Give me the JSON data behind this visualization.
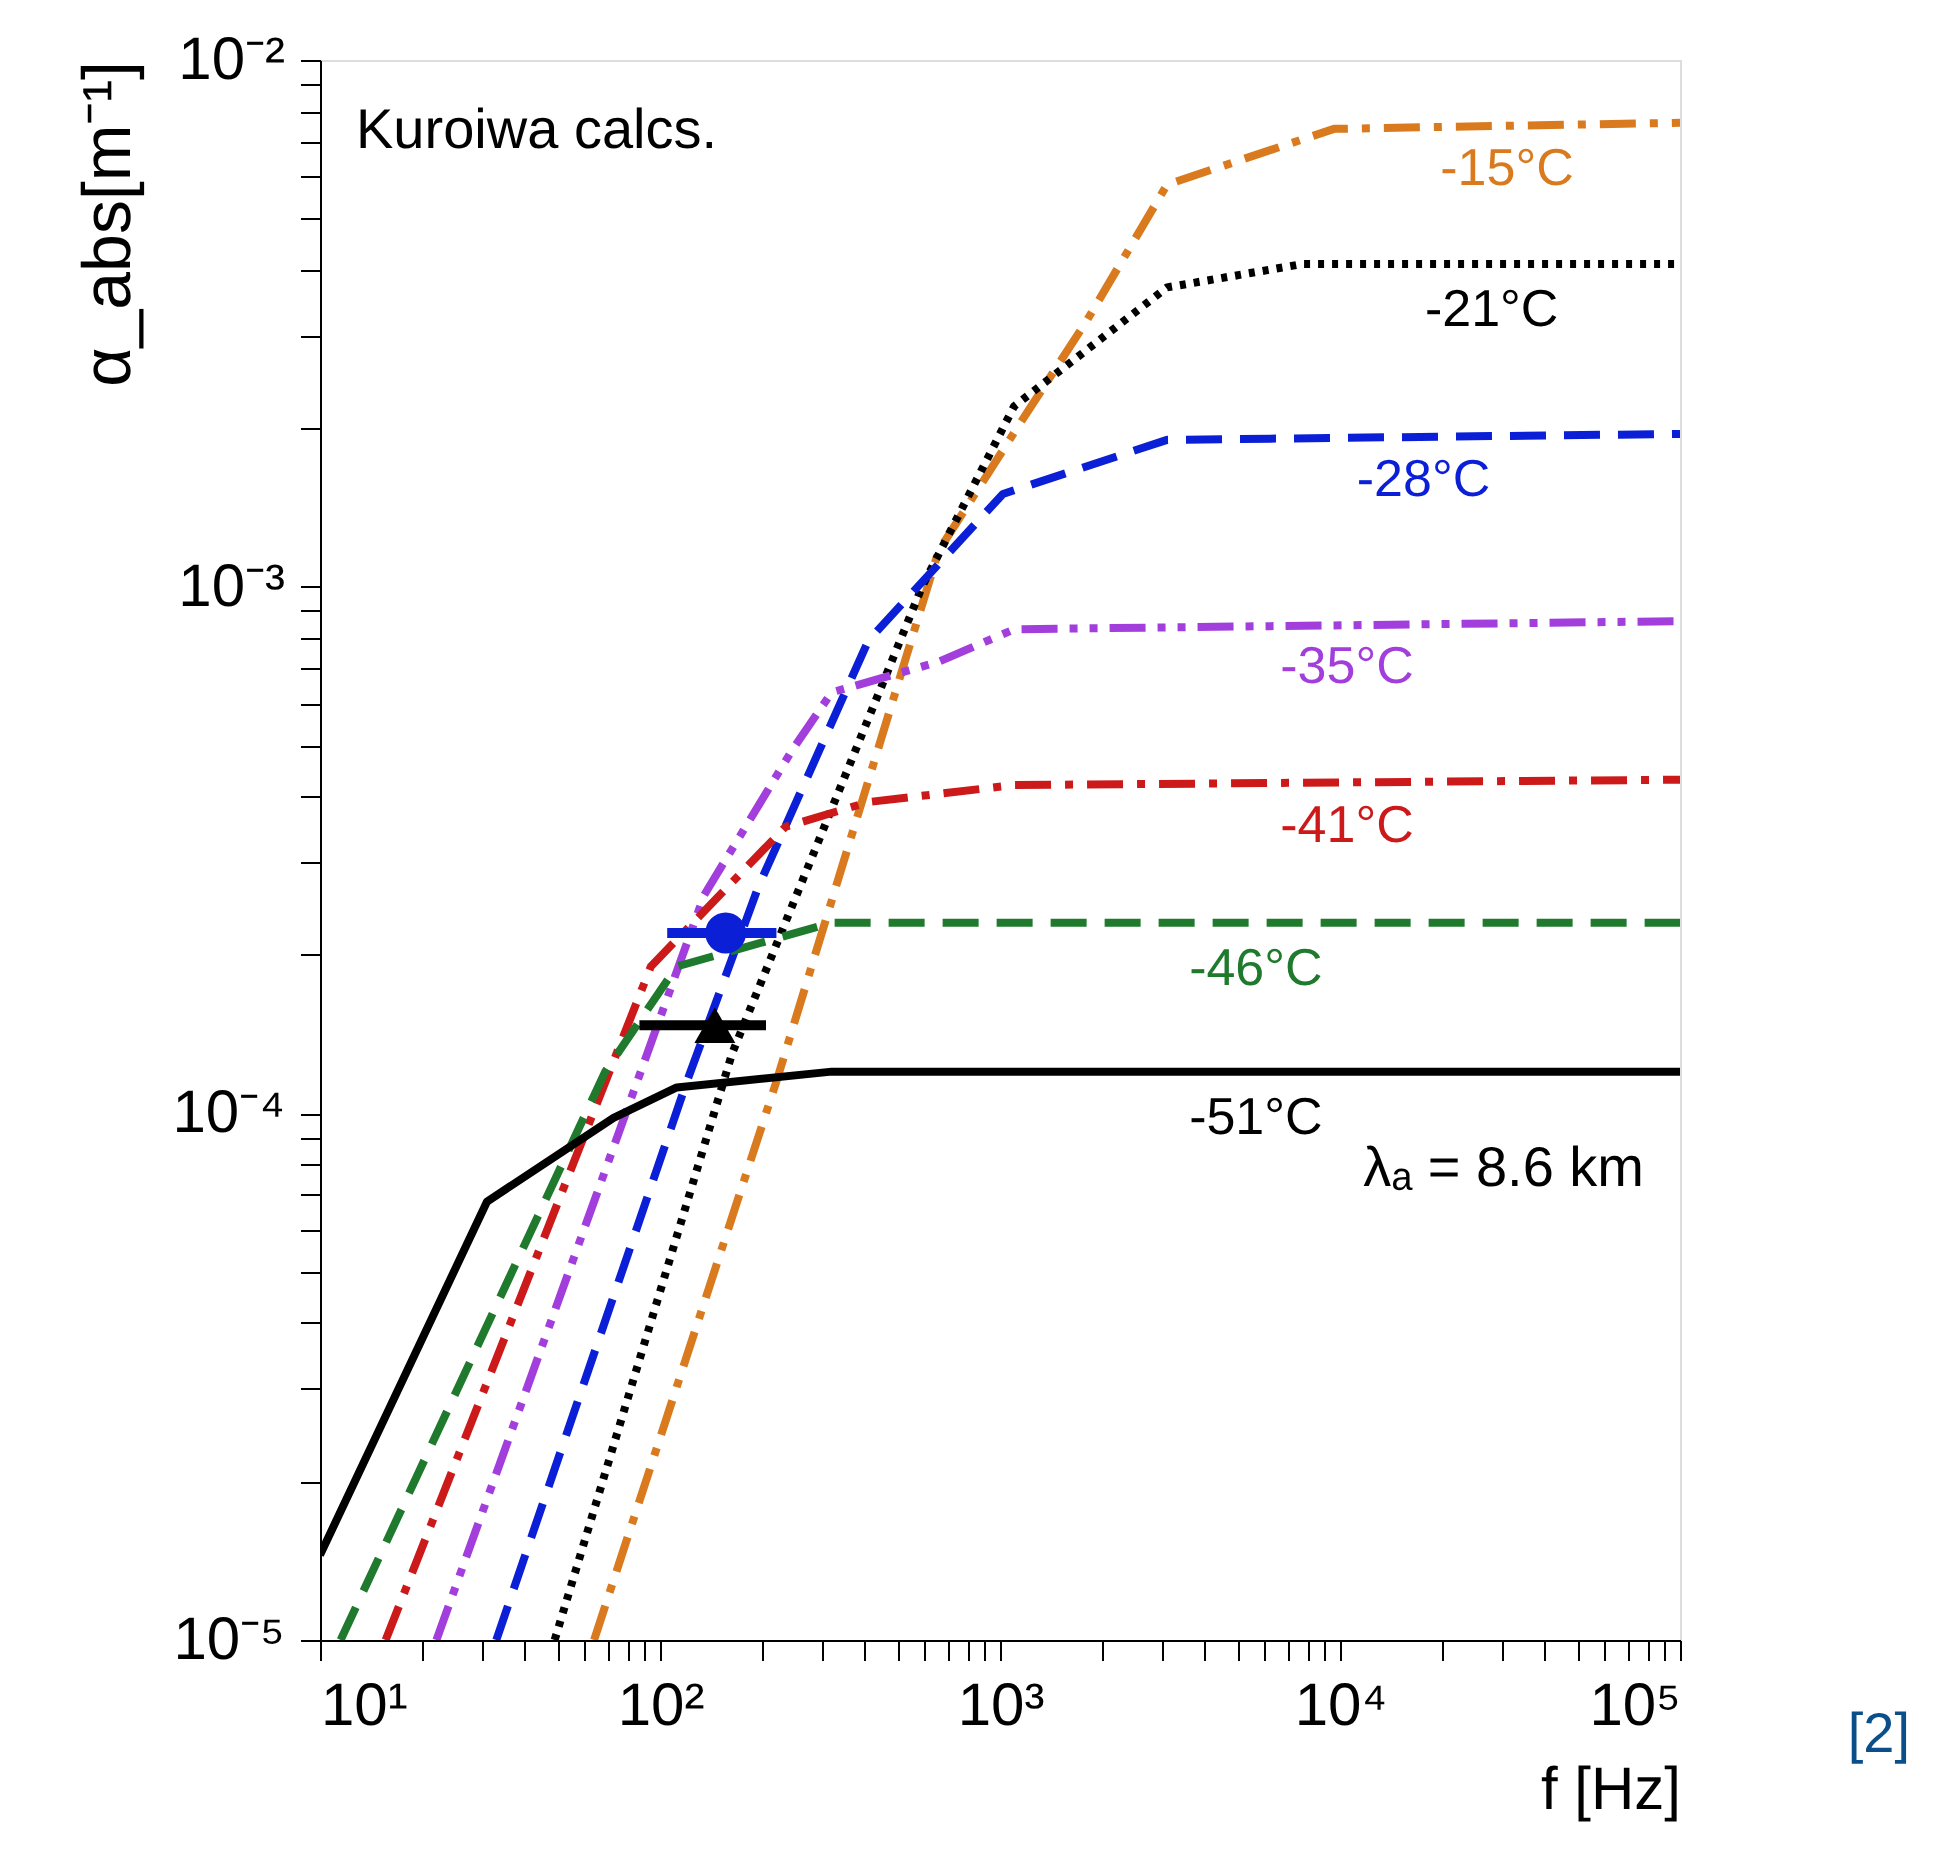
{
  "chart_data": {
    "type": "line",
    "xlabel": "f [Hz]",
    "ylabel": "α_abs[m⁻¹]",
    "log": "xy",
    "grid": false,
    "xlim": [
      10,
      100000
    ],
    "ylim": [
      1e-05,
      0.01
    ],
    "xticks": [
      {
        "value": 10,
        "label": "10¹"
      },
      {
        "value": 20,
        "label": null
      },
      {
        "value": 30,
        "label": null
      },
      {
        "value": 40,
        "label": null
      },
      {
        "value": 50,
        "label": null
      },
      {
        "value": 60,
        "label": null
      },
      {
        "value": 70,
        "label": null
      },
      {
        "value": 80,
        "label": null
      },
      {
        "value": 90,
        "label": null
      },
      {
        "value": 100,
        "label": "10²"
      },
      {
        "value": 200,
        "label": null
      },
      {
        "value": 300,
        "label": null
      },
      {
        "value": 400,
        "label": null
      },
      {
        "value": 500,
        "label": null
      },
      {
        "value": 600,
        "label": null
      },
      {
        "value": 700,
        "label": null
      },
      {
        "value": 800,
        "label": null
      },
      {
        "value": 900,
        "label": null
      },
      {
        "value": 1000,
        "label": "10³"
      },
      {
        "value": 2000,
        "label": null
      },
      {
        "value": 3000,
        "label": null
      },
      {
        "value": 4000,
        "label": null
      },
      {
        "value": 5000,
        "label": null
      },
      {
        "value": 6000,
        "label": null
      },
      {
        "value": 7000,
        "label": null
      },
      {
        "value": 8000,
        "label": null
      },
      {
        "value": 9000,
        "label": null
      },
      {
        "value": 10000,
        "label": "10⁴"
      },
      {
        "value": 20000,
        "label": null
      },
      {
        "value": 30000,
        "label": null
      },
      {
        "value": 40000,
        "label": null
      },
      {
        "value": 50000,
        "label": null
      },
      {
        "value": 60000,
        "label": null
      },
      {
        "value": 70000,
        "label": null
      },
      {
        "value": 80000,
        "label": null
      },
      {
        "value": 90000,
        "label": null
      },
      {
        "value": 100000,
        "label": "10⁵"
      }
    ],
    "yticks": [
      {
        "value": 1e-05,
        "label": "10⁻⁵"
      },
      {
        "value": 2e-05,
        "label": null
      },
      {
        "value": 3e-05,
        "label": null
      },
      {
        "value": 4e-05,
        "label": null
      },
      {
        "value": 5e-05,
        "label": null
      },
      {
        "value": 6e-05,
        "label": null
      },
      {
        "value": 7e-05,
        "label": null
      },
      {
        "value": 8e-05,
        "label": null
      },
      {
        "value": 9e-05,
        "label": null
      },
      {
        "value": 0.0001,
        "label": "10⁻⁴"
      },
      {
        "value": 0.0002,
        "label": null
      },
      {
        "value": 0.0003,
        "label": null
      },
      {
        "value": 0.0004,
        "label": null
      },
      {
        "value": 0.0005,
        "label": null
      },
      {
        "value": 0.0006,
        "label": null
      },
      {
        "value": 0.0007,
        "label": null
      },
      {
        "value": 0.0008,
        "label": null
      },
      {
        "value": 0.0009,
        "label": null
      },
      {
        "value": 0.001,
        "label": "10⁻³"
      },
      {
        "value": 0.002,
        "label": null
      },
      {
        "value": 0.003,
        "label": null
      },
      {
        "value": 0.004,
        "label": null
      },
      {
        "value": 0.005,
        "label": null
      },
      {
        "value": 0.006,
        "label": null
      },
      {
        "value": 0.007,
        "label": null
      },
      {
        "value": 0.008,
        "label": null
      },
      {
        "value": 0.009,
        "label": null
      },
      {
        "value": 0.01,
        "label": "10⁻²"
      }
    ],
    "series": [
      {
        "name": "-15°C",
        "color": "#d97a1e",
        "line_style": "dashdot",
        "x": [
          64,
          220,
          660,
          1150,
          1800,
          3100,
          9600,
          100000
        ],
        "values": [
          1e-05,
          0.000115,
          0.00117,
          0.00205,
          0.0032,
          0.0058,
          0.0074,
          0.0076
        ]
      },
      {
        "name": "-21°C",
        "color": "#000000",
        "line_style": "dotted",
        "x": [
          49,
          163,
          590,
          1100,
          3100,
          7800,
          100000
        ],
        "values": [
          1e-05,
          0.00013,
          0.001,
          0.0022,
          0.0037,
          0.0041,
          0.0041
        ]
      },
      {
        "name": "-28°C",
        "color": "#0a1fd6",
        "line_style": "dashed",
        "x": [
          33,
          120,
          195,
          410,
          1020,
          3100,
          100000
        ],
        "values": [
          1e-05,
          0.000115,
          0.00027,
          0.00079,
          0.0015,
          0.0019,
          0.00195
        ]
      },
      {
        "name": "-35°C",
        "color": "#a23fdc",
        "line_style": "dashdotdot",
        "x": [
          22,
          135,
          245,
          320,
          660,
          1100,
          100000
        ],
        "values": [
          1e-05,
          0.00026,
          0.00049,
          0.00063,
          0.00072,
          0.00083,
          0.00086
        ]
      },
      {
        "name": "-41°C",
        "color": "#cc1a1a",
        "line_style": "dashdot",
        "x": [
          15.6,
          94,
          234,
          410,
          1100,
          100000
        ],
        "values": [
          1e-05,
          0.00019,
          0.00035,
          0.00039,
          0.00042,
          0.00043
        ]
      },
      {
        "name": "-46°C",
        "color": "#1f7a2e",
        "line_style": "dashed",
        "x": [
          11.5,
          69,
          112,
          320,
          100000
        ],
        "values": [
          1e-05,
          0.00012,
          0.00019,
          0.00023,
          0.00023
        ]
      },
      {
        "name": "-51°C",
        "color": "#000000",
        "line_style": "solid",
        "x": [
          10,
          31,
          73,
          112,
          320,
          100000
        ],
        "values": [
          1.45e-05,
          6.8e-05,
          9.8e-05,
          0.000112,
          0.00012,
          0.00012
        ]
      },
      {
        "type": "scatter",
        "color": "#0a1fd6",
        "marker": "circle",
        "x": [
          156
        ],
        "values": [
          0.00022
        ],
        "xerrors": [
          [
            105,
            220
          ]
        ]
      },
      {
        "type": "scatter",
        "color": "#000000",
        "marker": "triangle",
        "x": [
          145
        ],
        "values": [
          0.000147
        ],
        "xerrors": [
          [
            87,
            205
          ]
        ]
      }
    ],
    "annotations": [
      "Kuroiwa calcs.",
      "λₐ = 8.6 km",
      "[2]"
    ]
  }
}
